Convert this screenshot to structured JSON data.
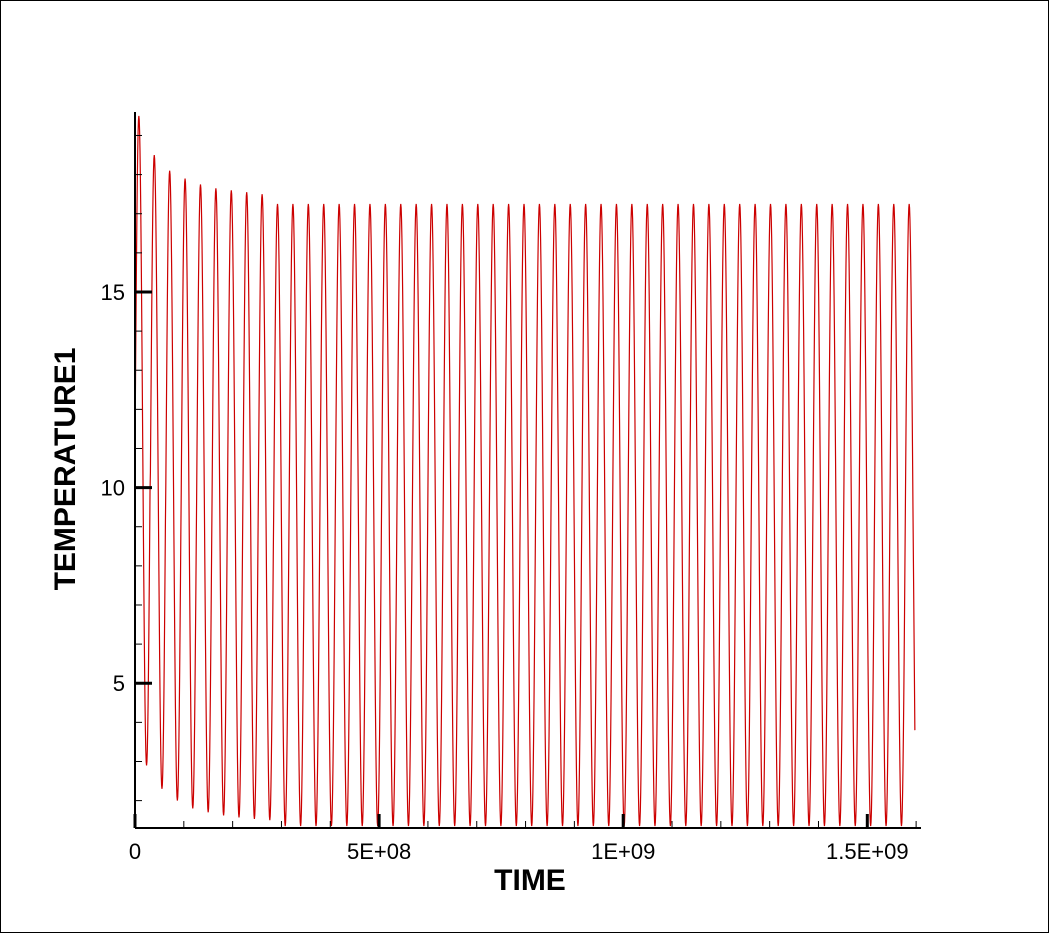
{
  "chart_data": {
    "type": "line",
    "title": "",
    "xlabel": "TIME",
    "ylabel": "TEMPERATURE1",
    "xlim": [
      0,
      1610000000
    ],
    "ylim": [
      1.3,
      19.6
    ],
    "x_ticks": [
      {
        "value": 0,
        "label": "0"
      },
      {
        "value": 500000000,
        "label": "5E+08"
      },
      {
        "value": 1000000000,
        "label": "1E+09"
      },
      {
        "value": 1500000000,
        "label": "1.5E+09"
      }
    ],
    "y_ticks": [
      {
        "value": 5,
        "label": "5"
      },
      {
        "value": 10,
        "label": "10"
      },
      {
        "value": 15,
        "label": "15"
      }
    ],
    "x_minor_step": 100000000,
    "y_minor_step": 1,
    "grid": false,
    "legend": "none",
    "series": [
      {
        "color": "#cc0000",
        "x_start": 0,
        "period": 31557600,
        "cycles": 50.5,
        "initial_value": 11.0,
        "peaks_first": [
          19.5,
          18.5,
          18.1,
          17.9,
          17.75,
          17.65,
          17.6,
          17.55,
          17.5
        ],
        "peak_asymptote": 17.25,
        "troughs_first": [
          2.9,
          2.3,
          2.0,
          1.8,
          1.7,
          1.62,
          1.57,
          1.53,
          1.5
        ],
        "trough_asymptote": 1.35,
        "final_value": 3.8
      }
    ]
  }
}
